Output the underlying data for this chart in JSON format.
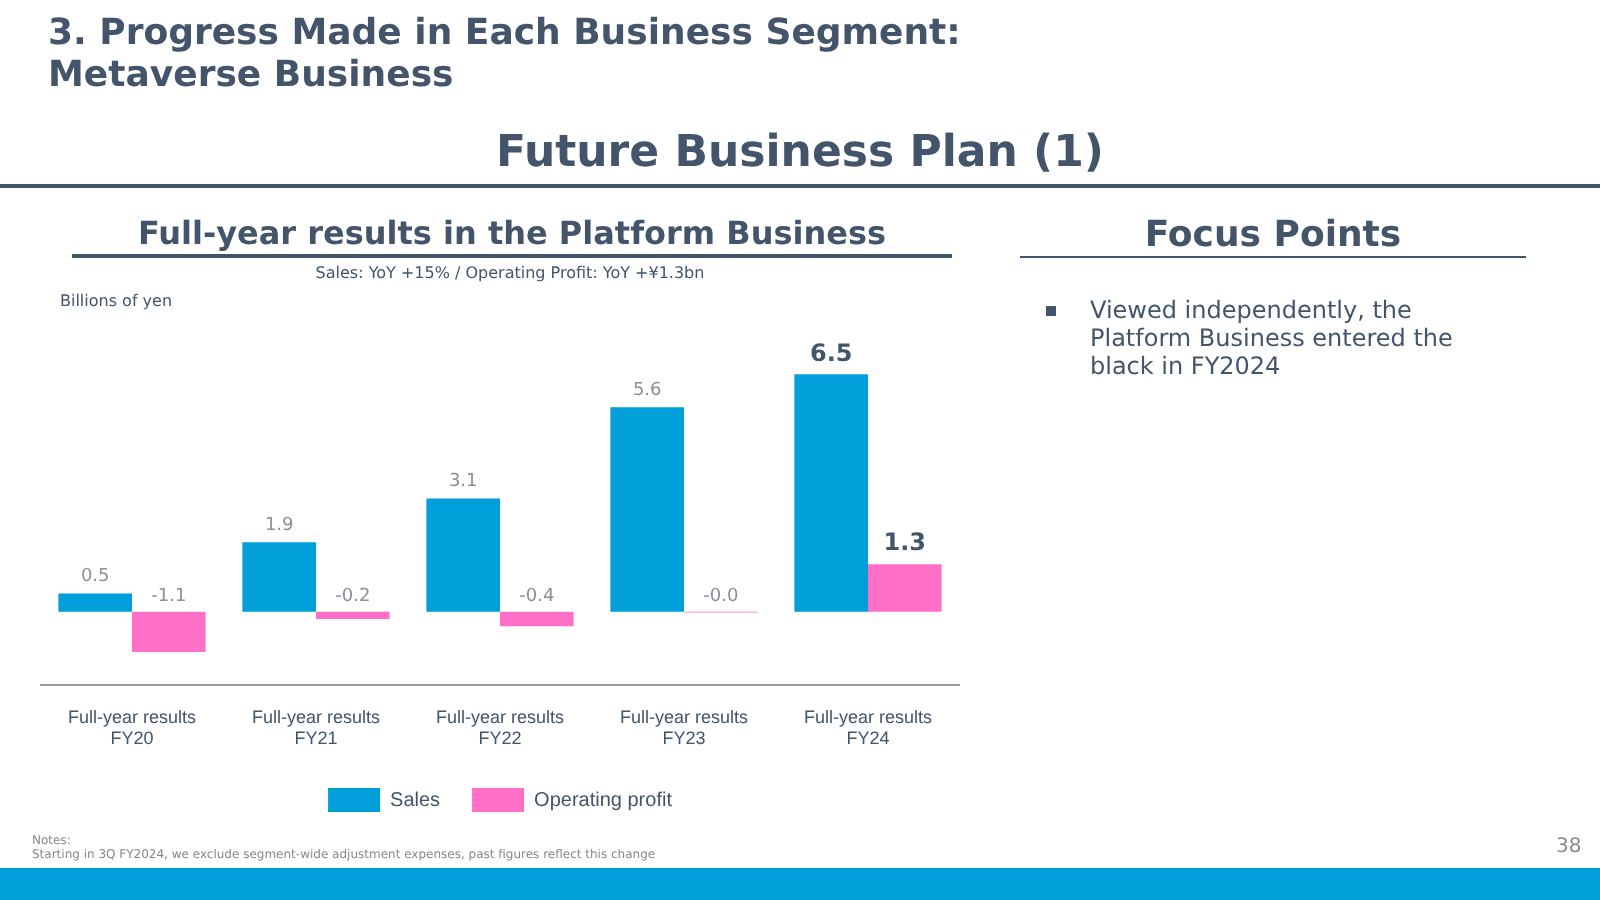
{
  "chart_data": {
    "type": "bar",
    "title": "Full-year results in the Platform Business",
    "subtitle": "Sales: YoY +15% / Operating Profit: YoY +¥1.3bn",
    "ylabel": "Billions of yen",
    "categories": [
      "Full-year results\nFY20",
      "Full-year results\nFY21",
      "Full-year results\nFY22",
      "Full-year results\nFY23",
      "Full-year results\nFY24"
    ],
    "series": [
      {
        "name": "Sales",
        "color": "#009fd9",
        "values": [
          0.5,
          1.9,
          3.1,
          5.6,
          6.5
        ],
        "value_labels": [
          "0.5",
          "1.9",
          "3.1",
          "5.6",
          "6.5"
        ]
      },
      {
        "name": "Operating profit",
        "color": "#ff6ec7",
        "values": [
          -1.1,
          -0.2,
          -0.4,
          -0.02,
          1.3
        ],
        "value_labels": [
          "-1.1",
          "-0.2",
          "-0.4",
          "-0.0",
          "1.3"
        ]
      }
    ],
    "legend": "bottom",
    "grid": false,
    "tick_labels": "x",
    "annotations": [
      "3. Progress Made in Each Business Segment:\nMetaverse Business",
      "Future Business Plan (1)",
      "Focus Points",
      "Viewed independently, the Platform Business entered the black in FY2024",
      "Notes:\nStarting in 3Q FY2024, we exclude segment-wide adjustment expenses, past figures reflect this change",
      "38"
    ]
  }
}
